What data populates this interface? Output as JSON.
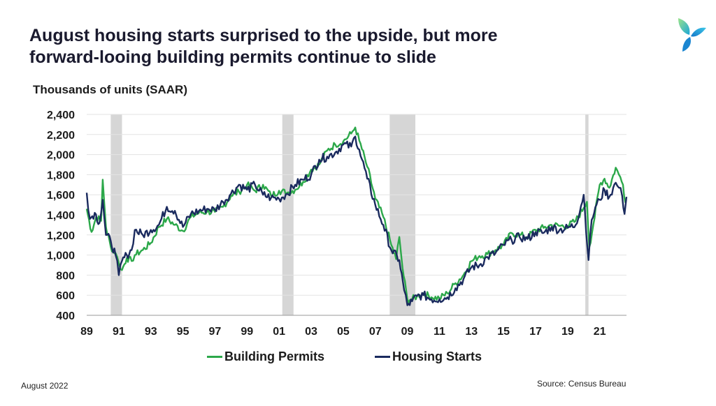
{
  "page": {
    "title_line1": "August housing starts surprised to the upside, but more",
    "title_line2": "forward-looing building permits continue to slide",
    "unit_label": "Thousands of units (SAAR)",
    "date_label": "August 2022",
    "source_label": "Source: Census Bureau",
    "logo_icon": "tri-leaf-logo-icon"
  },
  "chart_data": {
    "type": "line",
    "title": "August housing starts surprised to the upside, but more forward-looing building permits continue to slide",
    "ylabel": "Thousands of units (SAAR)",
    "xlabel": "",
    "xlim": [
      1989.0,
      2022.67
    ],
    "ylim": [
      400,
      2400
    ],
    "y_ticks": [
      400,
      600,
      800,
      1000,
      1200,
      1400,
      1600,
      1800,
      2000,
      2200,
      2400
    ],
    "y_tick_labels": [
      "400",
      "600",
      "800",
      "1,000",
      "1,200",
      "1,400",
      "1,600",
      "1,800",
      "2,000",
      "2,200",
      "2,400"
    ],
    "x_ticks": [
      1989,
      1991,
      1993,
      1995,
      1997,
      1999,
      2001,
      2003,
      2005,
      2007,
      2009,
      2011,
      2013,
      2015,
      2017,
      2019,
      2021
    ],
    "x_tick_labels": [
      "89",
      "91",
      "93",
      "95",
      "97",
      "99",
      "01",
      "03",
      "05",
      "07",
      "09",
      "11",
      "13",
      "15",
      "17",
      "19",
      "21"
    ],
    "grid": "horizontal",
    "legend_position": "bottom",
    "recessions": [
      [
        1990.5,
        1991.2
      ],
      [
        2001.2,
        2001.9
      ],
      [
        2007.9,
        2009.5
      ],
      [
        2020.1,
        2020.3
      ]
    ],
    "series": [
      {
        "name": "Building Permits",
        "color": "#2ca84a",
        "x": [
          1989.0,
          1989.3,
          1989.6,
          1989.9,
          1990.0,
          1990.2,
          1990.5,
          1990.8,
          1991.0,
          1991.2,
          1991.5,
          1991.8,
          1992.0,
          1992.5,
          1993.0,
          1993.5,
          1994.0,
          1994.5,
          1995.0,
          1995.5,
          1996.0,
          1996.5,
          1997.0,
          1997.5,
          1998.0,
          1998.5,
          1999.0,
          1999.5,
          2000.0,
          2000.5,
          2001.0,
          2001.5,
          2002.0,
          2002.5,
          2003.0,
          2003.5,
          2004.0,
          2004.5,
          2005.0,
          2005.5,
          2005.75,
          2006.0,
          2006.5,
          2007.0,
          2007.5,
          2008.0,
          2008.3,
          2008.5,
          2008.7,
          2009.0,
          2009.3,
          2009.6,
          2010.0,
          2010.5,
          2011.0,
          2011.5,
          2012.0,
          2012.5,
          2013.0,
          2013.5,
          2014.0,
          2014.5,
          2015.0,
          2015.5,
          2016.0,
          2016.5,
          2017.0,
          2017.5,
          2018.0,
          2018.5,
          2019.0,
          2019.5,
          2020.0,
          2020.2,
          2020.35,
          2020.6,
          2021.0,
          2021.3,
          2021.6,
          2022.0,
          2022.2,
          2022.45,
          2022.6
        ],
        "values": [
          1460,
          1230,
          1380,
          1340,
          1750,
          1280,
          1080,
          1020,
          920,
          850,
          970,
          940,
          1000,
          1050,
          1120,
          1280,
          1360,
          1300,
          1240,
          1380,
          1420,
          1430,
          1430,
          1480,
          1590,
          1630,
          1700,
          1640,
          1700,
          1590,
          1640,
          1620,
          1650,
          1730,
          1850,
          1900,
          2040,
          2100,
          2130,
          2210,
          2270,
          2140,
          1880,
          1560,
          1380,
          1100,
          960,
          1180,
          870,
          560,
          560,
          590,
          620,
          580,
          570,
          620,
          720,
          800,
          940,
          990,
          1010,
          1050,
          1100,
          1220,
          1200,
          1180,
          1250,
          1270,
          1300,
          1290,
          1290,
          1340,
          1470,
          1530,
          1080,
          1300,
          1700,
          1760,
          1670,
          1870,
          1800,
          1700,
          1520
        ]
      },
      {
        "name": "Housing Starts",
        "color": "#1a2a5e",
        "x": [
          1989.0,
          1989.2,
          1989.5,
          1989.8,
          1990.0,
          1990.2,
          1990.5,
          1990.8,
          1991.0,
          1991.2,
          1991.5,
          1991.8,
          1992.0,
          1992.5,
          1993.0,
          1993.5,
          1994.0,
          1994.5,
          1995.0,
          1995.5,
          1996.0,
          1996.5,
          1997.0,
          1997.5,
          1998.0,
          1998.5,
          1999.0,
          1999.5,
          2000.0,
          2000.5,
          2001.0,
          2001.5,
          2002.0,
          2002.5,
          2003.0,
          2003.5,
          2004.0,
          2004.5,
          2005.0,
          2005.5,
          2005.75,
          2006.0,
          2006.5,
          2007.0,
          2007.5,
          2008.0,
          2008.5,
          2008.8,
          2009.0,
          2009.3,
          2009.6,
          2010.0,
          2010.5,
          2011.0,
          2011.5,
          2012.0,
          2012.5,
          2013.0,
          2013.5,
          2014.0,
          2014.5,
          2015.0,
          2015.5,
          2016.0,
          2016.5,
          2017.0,
          2017.5,
          2018.0,
          2018.5,
          2019.0,
          2019.5,
          2020.0,
          2020.3,
          2020.5,
          2020.8,
          2021.0,
          2021.3,
          2021.6,
          2022.0,
          2022.2,
          2022.4,
          2022.55,
          2022.67
        ],
        "values": [
          1620,
          1360,
          1420,
          1320,
          1550,
          1200,
          1140,
          1000,
          800,
          940,
          1000,
          1050,
          1250,
          1200,
          1250,
          1300,
          1480,
          1440,
          1280,
          1410,
          1440,
          1460,
          1450,
          1530,
          1610,
          1700,
          1650,
          1700,
          1600,
          1570,
          1560,
          1610,
          1700,
          1750,
          1800,
          1950,
          1980,
          2020,
          2100,
          2080,
          2180,
          2050,
          1760,
          1500,
          1300,
          1050,
          950,
          650,
          500,
          540,
          590,
          600,
          560,
          560,
          580,
          670,
          760,
          880,
          900,
          980,
          1020,
          1100,
          1150,
          1180,
          1160,
          1230,
          1220,
          1280,
          1250,
          1270,
          1300,
          1600,
          950,
          1350,
          1500,
          1550,
          1650,
          1580,
          1720,
          1670,
          1590,
          1410,
          1580
        ]
      }
    ]
  }
}
